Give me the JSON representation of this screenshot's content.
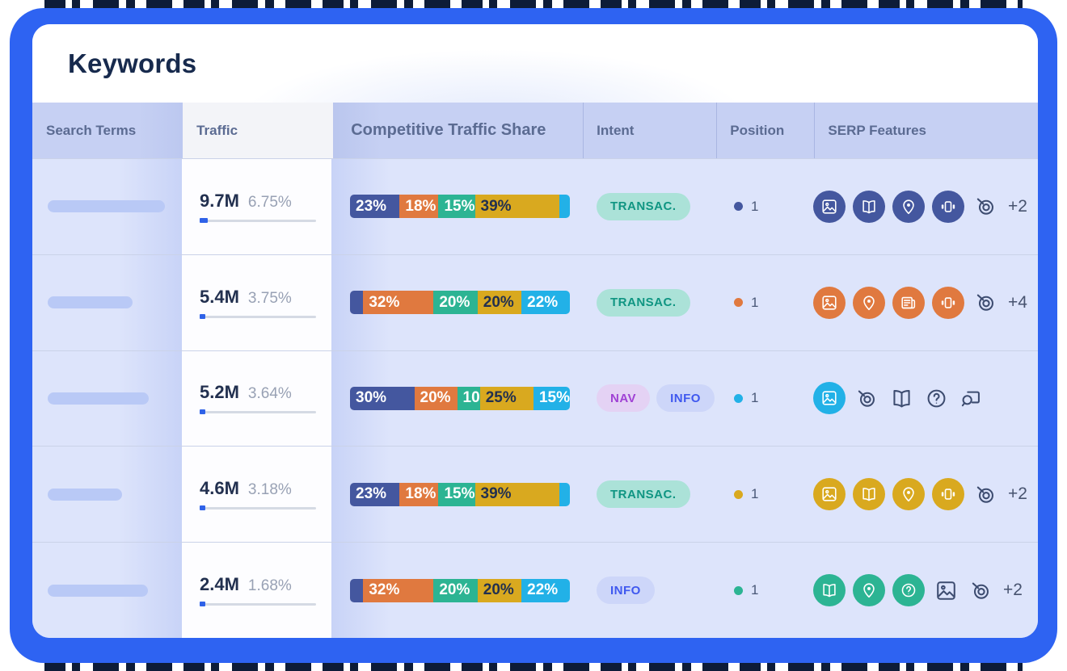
{
  "page": {
    "title": "Keywords"
  },
  "colors": {
    "frame_blue": "#2e63f2",
    "pattern_dark": "#0d1c38",
    "header_bg": "#c6d0f3",
    "body_bg": "#dde4fb",
    "text_dark": "#22304f",
    "text_light": "#ffffff",
    "palette": {
      "navy": "#44579f",
      "orange": "#e0793f",
      "green": "#2cb493",
      "yellow": "#d9a91f",
      "cyan": "#22b1e7"
    },
    "badges": {
      "transactional": {
        "bg": "#abe2d8",
        "text": "#0f9582"
      },
      "nav": {
        "bg": "#e4d2f4",
        "text": "#a041d4"
      },
      "info": {
        "bg": "#cdd6f9",
        "text": "#3f58ef"
      }
    },
    "progress_fill": "#2f62e8",
    "outline_icon": "#3d4c70"
  },
  "table": {
    "columns": [
      "Search Terms",
      "Traffic",
      "Competitive Traffic Share",
      "Intent",
      "Position",
      "SERP Features"
    ],
    "rows": [
      {
        "placeholder_width": 145,
        "traffic": "9.7M",
        "share": "6.75%",
        "progress_pct": 7,
        "bar": [
          {
            "color": "navy",
            "pct": 23,
            "label": "23%",
            "label_style": "light"
          },
          {
            "color": "orange",
            "pct": 18,
            "label": "18%",
            "label_style": "light"
          },
          {
            "color": "green",
            "pct": 15,
            "label": "15%",
            "label_style": "light"
          },
          {
            "color": "yellow",
            "pct": 39,
            "label": "39%",
            "label_style": "dark"
          },
          {
            "color": "cyan",
            "pct": 5,
            "label": "",
            "label_style": "light"
          }
        ],
        "intents": [
          {
            "label": "TRANSAC.",
            "style": "transactional"
          }
        ],
        "position": {
          "value": "1",
          "dot_color": "navy"
        },
        "serp_features": {
          "filled_color": "navy",
          "icons": [
            {
              "name": "image",
              "style": "filled"
            },
            {
              "name": "book",
              "style": "filled"
            },
            {
              "name": "pin",
              "style": "filled"
            },
            {
              "name": "carousel",
              "style": "filled"
            },
            {
              "name": "target-spiral",
              "style": "outline"
            }
          ],
          "more": "+2"
        }
      },
      {
        "placeholder_width": 105,
        "traffic": "5.4M",
        "share": "3.75%",
        "progress_pct": 5,
        "bar": [
          {
            "color": "navy",
            "pct": 6,
            "label": "",
            "label_style": "light"
          },
          {
            "color": "orange",
            "pct": 32,
            "label": "32%",
            "label_style": "light"
          },
          {
            "color": "green",
            "pct": 20,
            "label": "20%",
            "label_style": "light"
          },
          {
            "color": "yellow",
            "pct": 20,
            "label": "20%",
            "label_style": "dark"
          },
          {
            "color": "cyan",
            "pct": 22,
            "label": "22%",
            "label_style": "light"
          }
        ],
        "intents": [
          {
            "label": "TRANSAC.",
            "style": "transactional"
          }
        ],
        "position": {
          "value": "1",
          "dot_color": "orange"
        },
        "serp_features": {
          "filled_color": "orange",
          "icons": [
            {
              "name": "image",
              "style": "filled"
            },
            {
              "name": "pin",
              "style": "filled"
            },
            {
              "name": "news",
              "style": "filled"
            },
            {
              "name": "carousel",
              "style": "filled"
            },
            {
              "name": "target-spiral",
              "style": "outline"
            }
          ],
          "more": "+4"
        }
      },
      {
        "placeholder_width": 125,
        "traffic": "5.2M",
        "share": "3.64%",
        "progress_pct": 5,
        "bar": [
          {
            "color": "navy",
            "pct": 30,
            "label": "30%",
            "label_style": "light"
          },
          {
            "color": "orange",
            "pct": 20,
            "label": "20%",
            "label_style": "light"
          },
          {
            "color": "green",
            "pct": 10,
            "label": "10",
            "label_style": "light"
          },
          {
            "color": "yellow",
            "pct": 25,
            "label": "25%",
            "label_style": "dark"
          },
          {
            "color": "cyan",
            "pct": 15,
            "label": "15%",
            "label_style": "light"
          }
        ],
        "intents": [
          {
            "label": "NAV",
            "style": "nav"
          },
          {
            "label": "INFO",
            "style": "info"
          }
        ],
        "position": {
          "value": "1",
          "dot_color": "cyan"
        },
        "serp_features": {
          "filled_color": "cyan",
          "icons": [
            {
              "name": "image",
              "style": "filled"
            },
            {
              "name": "target-spiral",
              "style": "outline"
            },
            {
              "name": "book",
              "style": "outline"
            },
            {
              "name": "question",
              "style": "outline"
            },
            {
              "name": "related-search",
              "style": "outline"
            }
          ],
          "more": ""
        }
      },
      {
        "placeholder_width": 92,
        "traffic": "4.6M",
        "share": "3.18%",
        "progress_pct": 5,
        "bar": [
          {
            "color": "navy",
            "pct": 23,
            "label": "23%",
            "label_style": "light"
          },
          {
            "color": "orange",
            "pct": 18,
            "label": "18%",
            "label_style": "light"
          },
          {
            "color": "green",
            "pct": 15,
            "label": "15%",
            "label_style": "light"
          },
          {
            "color": "yellow",
            "pct": 39,
            "label": "39%",
            "label_style": "dark"
          },
          {
            "color": "cyan",
            "pct": 5,
            "label": "",
            "label_style": "light"
          }
        ],
        "intents": [
          {
            "label": "TRANSAC.",
            "style": "transactional"
          }
        ],
        "position": {
          "value": "1",
          "dot_color": "yellow"
        },
        "serp_features": {
          "filled_color": "yellow",
          "icons": [
            {
              "name": "image",
              "style": "filled"
            },
            {
              "name": "book",
              "style": "filled"
            },
            {
              "name": "pin",
              "style": "filled"
            },
            {
              "name": "carousel",
              "style": "filled"
            },
            {
              "name": "target-spiral",
              "style": "outline"
            }
          ],
          "more": "+2"
        }
      },
      {
        "placeholder_width": 124,
        "traffic": "2.4M",
        "share": "1.68%",
        "progress_pct": 4,
        "bar": [
          {
            "color": "navy",
            "pct": 6,
            "label": "",
            "label_style": "light"
          },
          {
            "color": "orange",
            "pct": 32,
            "label": "32%",
            "label_style": "light"
          },
          {
            "color": "green",
            "pct": 20,
            "label": "20%",
            "label_style": "light"
          },
          {
            "color": "yellow",
            "pct": 20,
            "label": "20%",
            "label_style": "dark"
          },
          {
            "color": "cyan",
            "pct": 22,
            "label": "22%",
            "label_style": "light"
          }
        ],
        "intents": [
          {
            "label": "INFO",
            "style": "info"
          }
        ],
        "position": {
          "value": "1",
          "dot_color": "green"
        },
        "serp_features": {
          "filled_color": "green",
          "icons": [
            {
              "name": "book",
              "style": "filled"
            },
            {
              "name": "pin",
              "style": "filled"
            },
            {
              "name": "question",
              "style": "filled"
            },
            {
              "name": "image",
              "style": "outline"
            },
            {
              "name": "target-spiral",
              "style": "outline"
            }
          ],
          "more": "+2"
        }
      }
    ]
  }
}
